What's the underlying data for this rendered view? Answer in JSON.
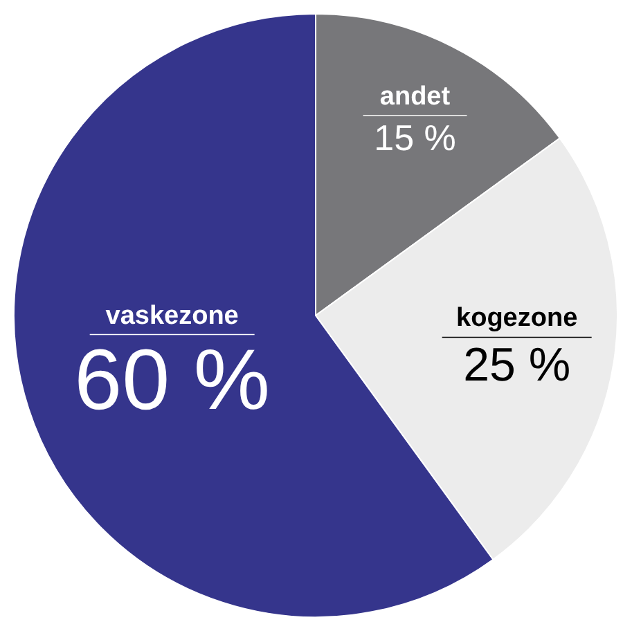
{
  "chart_data": {
    "type": "pie",
    "categories": [
      "andet",
      "kogezone",
      "vaskezone"
    ],
    "values": [
      15,
      25,
      60
    ],
    "colors": [
      "#77777a",
      "#ececec",
      "#35358c"
    ],
    "value_labels": [
      "15 %",
      "25 %",
      "60 %"
    ]
  }
}
